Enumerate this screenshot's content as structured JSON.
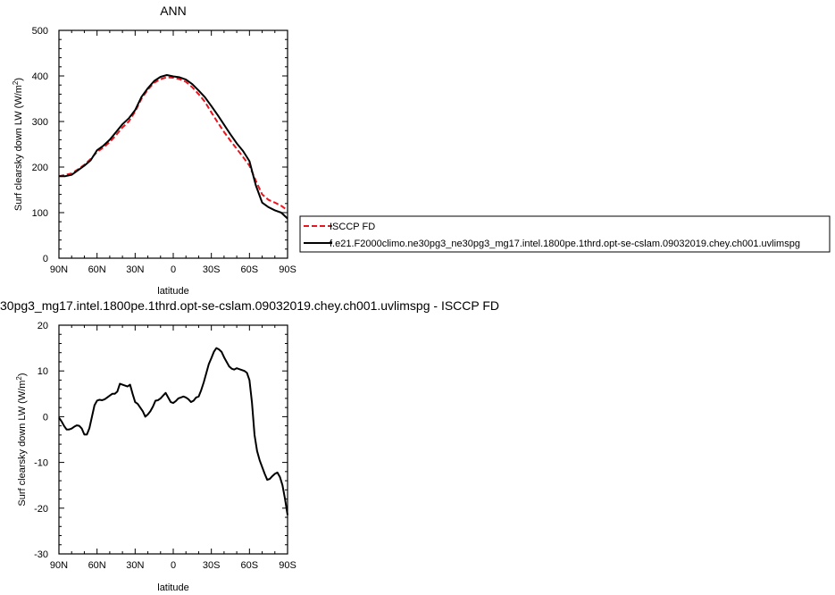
{
  "chart_data": [
    {
      "type": "line",
      "title": "ANN",
      "xlabel": "latitude",
      "ylabel": "Surf clearsky down LW (W/m",
      "ylabel_sup": "2",
      "ylabel_end": ")",
      "xlim": [
        90,
        -90
      ],
      "ylim": [
        0,
        500
      ],
      "xticks": [
        {
          "value": 90,
          "label": "90N"
        },
        {
          "value": 60,
          "label": "60N"
        },
        {
          "value": 30,
          "label": "30N"
        },
        {
          "value": 0,
          "label": "0"
        },
        {
          "value": -30,
          "label": "30S"
        },
        {
          "value": -60,
          "label": "60S"
        },
        {
          "value": -90,
          "label": "90S"
        }
      ],
      "yticks": [
        {
          "value": 0,
          "label": "0"
        },
        {
          "value": 100,
          "label": "100"
        },
        {
          "value": 200,
          "label": "200"
        },
        {
          "value": 300,
          "label": "300"
        },
        {
          "value": 400,
          "label": "400"
        },
        {
          "value": 500,
          "label": "500"
        }
      ],
      "x": [
        90,
        85,
        80,
        75,
        70,
        65,
        60,
        55,
        50,
        45,
        40,
        35,
        30,
        25,
        20,
        15,
        10,
        5,
        0,
        -5,
        -10,
        -15,
        -20,
        -25,
        -30,
        -35,
        -40,
        -45,
        -50,
        -55,
        -60,
        -65,
        -70,
        -75,
        -80,
        -85,
        -90
      ],
      "series": [
        {
          "name": "ISCCP FD",
          "color": "#e8161e",
          "dash": "dashed",
          "values": [
            180,
            183,
            186,
            195,
            205,
            218,
            233,
            243,
            255,
            270,
            287,
            300,
            322,
            350,
            370,
            385,
            393,
            397,
            396,
            393,
            387,
            375,
            360,
            343,
            320,
            298,
            277,
            258,
            240,
            222,
            203,
            170,
            140,
            128,
            122,
            115,
            105
          ]
        },
        {
          "name": "f.e21.F2000climo.ne30pg3_ne30pg3_mg17.intel.1800pe.1thrd.opt-se-cslam.09032019.chey.ch001.uvlimspg",
          "color": "#000000",
          "dash": "solid",
          "values": [
            180,
            180,
            183,
            193,
            203,
            215,
            237,
            247,
            260,
            277,
            294,
            307,
            325,
            354,
            373,
            389,
            398,
            402,
            399,
            397,
            392,
            382,
            368,
            353,
            334,
            314,
            293,
            272,
            252,
            235,
            213,
            160,
            122,
            112,
            105,
            100,
            87
          ]
        }
      ]
    },
    {
      "type": "line",
      "title": "30pg3_mg17.intel.1800pe.1thrd.opt-se-cslam.09032019.chey.ch001.uvlimspg - ISCCP FD",
      "xlabel": "latitude",
      "ylabel": "Surf clearsky down LW (W/m",
      "ylabel_sup": "2",
      "ylabel_end": ")",
      "xlim": [
        90,
        -90
      ],
      "ylim": [
        -30,
        20
      ],
      "xticks": [
        {
          "value": 90,
          "label": "90N"
        },
        {
          "value": 60,
          "label": "60N"
        },
        {
          "value": 30,
          "label": "30N"
        },
        {
          "value": 0,
          "label": "0"
        },
        {
          "value": -30,
          "label": "30S"
        },
        {
          "value": -60,
          "label": "60S"
        },
        {
          "value": -90,
          "label": "90S"
        }
      ],
      "yticks": [
        {
          "value": -30,
          "label": "-30"
        },
        {
          "value": -20,
          "label": "-20"
        },
        {
          "value": -10,
          "label": "-10"
        },
        {
          "value": 0,
          "label": "0"
        },
        {
          "value": 10,
          "label": "10"
        },
        {
          "value": 20,
          "label": "20"
        }
      ],
      "x": [
        90,
        88,
        86,
        84,
        82,
        80,
        78,
        76,
        74,
        72,
        70,
        68,
        66,
        64,
        62,
        60,
        58,
        56,
        54,
        52,
        50,
        48,
        46,
        44,
        42,
        40,
        38,
        36,
        34,
        32,
        30,
        28,
        26,
        24,
        22,
        20,
        18,
        16,
        14,
        12,
        10,
        8,
        6,
        4,
        2,
        0,
        -2,
        -4,
        -6,
        -8,
        -10,
        -12,
        -14,
        -16,
        -18,
        -20,
        -22,
        -24,
        -26,
        -28,
        -30,
        -32,
        -34,
        -36,
        -38,
        -40,
        -42,
        -44,
        -46,
        -48,
        -50,
        -52,
        -54,
        -56,
        -58,
        -60,
        -62,
        -64,
        -66,
        -68,
        -70,
        -72,
        -74,
        -76,
        -78,
        -80,
        -82,
        -84,
        -86,
        -88,
        -90
      ],
      "series": [
        {
          "name": "",
          "color": "#000000",
          "dash": "solid",
          "values": [
            -0.2,
            -1.0,
            -2.0,
            -2.8,
            -2.8,
            -2.6,
            -2.2,
            -1.9,
            -2.0,
            -2.6,
            -3.9,
            -3.9,
            -2.5,
            0.0,
            2.5,
            3.5,
            3.7,
            3.6,
            3.8,
            4.2,
            4.6,
            5.0,
            5.0,
            5.5,
            7.2,
            7.0,
            6.8,
            6.6,
            7.0,
            5.0,
            3.2,
            2.8,
            2.0,
            1.2,
            0.0,
            0.5,
            1.2,
            2.2,
            3.5,
            3.6,
            4.0,
            4.6,
            5.2,
            4.2,
            3.2,
            3.0,
            3.4,
            4.0,
            4.2,
            4.4,
            4.2,
            3.8,
            3.2,
            3.5,
            4.2,
            4.4,
            5.8,
            7.5,
            9.5,
            11.5,
            12.8,
            14.2,
            15.0,
            14.7,
            14.2,
            13.0,
            12.0,
            11.0,
            10.5,
            10.3,
            10.6,
            10.4,
            10.2,
            10.0,
            9.6,
            8.0,
            3.0,
            -4.0,
            -7.5,
            -9.5,
            -11.0,
            -12.5,
            -13.8,
            -13.6,
            -13.0,
            -12.5,
            -12.2,
            -13.2,
            -15.0,
            -18.0,
            -21.5
          ]
        }
      ]
    }
  ]
}
